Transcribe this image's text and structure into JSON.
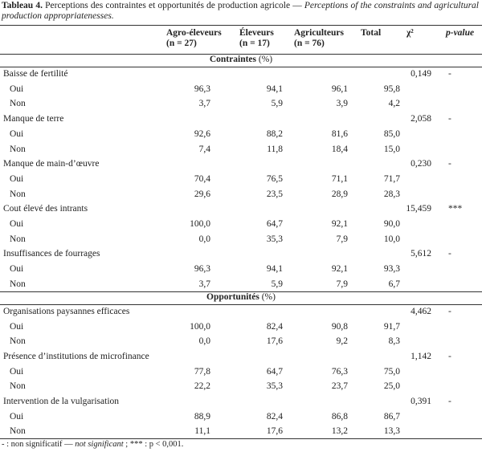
{
  "caption": {
    "label": "Tableau 4.",
    "text_fr": "Perceptions des contraintes et opportunités de production agricole —",
    "text_en": "Perceptions of the constraints and agricultural production appropriatenesses."
  },
  "header": [
    {
      "name": "Agro-éleveurs",
      "n": "(n = 27)"
    },
    {
      "name": "Éleveurs",
      "n": "(n = 17)"
    },
    {
      "name": "Agriculteurs",
      "n": "(n = 76)"
    },
    {
      "name": "Total"
    },
    {
      "name": "χ²"
    },
    {
      "name": "p-value"
    }
  ],
  "sections": [
    {
      "title": "Contraintes",
      "unit": "(%)",
      "items": [
        {
          "label": "Baisse de fertilité",
          "chi2": "0,149",
          "p": "-",
          "rows": [
            {
              "label": "Oui",
              "values": [
                "96,3",
                "94,1",
                "96,1",
                "95,8"
              ]
            },
            {
              "label": "Non",
              "values": [
                "3,7",
                "5,9",
                "3,9",
                "4,2"
              ]
            }
          ]
        },
        {
          "label": "Manque de terre",
          "chi2": "2,058",
          "p": "-",
          "rows": [
            {
              "label": "Oui",
              "values": [
                "92,6",
                "88,2",
                "81,6",
                "85,0"
              ]
            },
            {
              "label": "Non",
              "values": [
                "7,4",
                "11,8",
                "18,4",
                "15,0"
              ]
            }
          ]
        },
        {
          "label": "Manque de main-d’œuvre",
          "chi2": "0,230",
          "p": "-",
          "rows": [
            {
              "label": "Oui",
              "values": [
                "70,4",
                "76,5",
                "71,1",
                "71,7"
              ]
            },
            {
              "label": "Non",
              "values": [
                "29,6",
                "23,5",
                "28,9",
                "28,3"
              ]
            }
          ]
        },
        {
          "label": "Cout élevé des intrants",
          "chi2": "15,459",
          "p": "***",
          "rows": [
            {
              "label": "Oui",
              "values": [
                "100,0",
                "64,7",
                "92,1",
                "90,0"
              ]
            },
            {
              "label": "Non",
              "values": [
                "0,0",
                "35,3",
                "7,9",
                "10,0"
              ]
            }
          ]
        },
        {
          "label": "Insuffisances de fourrages",
          "chi2": "5,612",
          "p": "-",
          "rows": [
            {
              "label": "Oui",
              "values": [
                "96,3",
                "94,1",
                "92,1",
                "93,3"
              ]
            },
            {
              "label": "Non",
              "values": [
                "3,7",
                "5,9",
                "7,9",
                "6,7"
              ]
            }
          ]
        }
      ]
    },
    {
      "title": "Opportunités",
      "unit": "(%)",
      "items": [
        {
          "label": "Organisations paysannes efficaces",
          "chi2": "4,462",
          "p": "-",
          "rows": [
            {
              "label": "Oui",
              "values": [
                "100,0",
                "82,4",
                "90,8",
                "91,7"
              ]
            },
            {
              "label": "Non",
              "values": [
                "0,0",
                "17,6",
                "9,2",
                "8,3"
              ]
            }
          ]
        },
        {
          "label": "Présence d’institutions de microfinance",
          "chi2": "1,142",
          "p": "-",
          "rows": [
            {
              "label": "Oui",
              "values": [
                "77,8",
                "64,7",
                "76,3",
                "75,0"
              ]
            },
            {
              "label": "Non",
              "values": [
                "22,2",
                "35,3",
                "23,7",
                "25,0"
              ]
            }
          ]
        },
        {
          "label": "Intervention de la vulgarisation",
          "chi2": "0,391",
          "p": "-",
          "rows": [
            {
              "label": "Oui",
              "values": [
                "88,9",
                "82,4",
                "86,8",
                "86,7"
              ]
            },
            {
              "label": "Non",
              "values": [
                "11,1",
                "17,6",
                "13,2",
                "13,3"
              ]
            }
          ]
        }
      ]
    }
  ],
  "footnote": {
    "a": "- : non significatif —",
    "b": "not significant",
    "c": "; *** : p < 0,001."
  }
}
